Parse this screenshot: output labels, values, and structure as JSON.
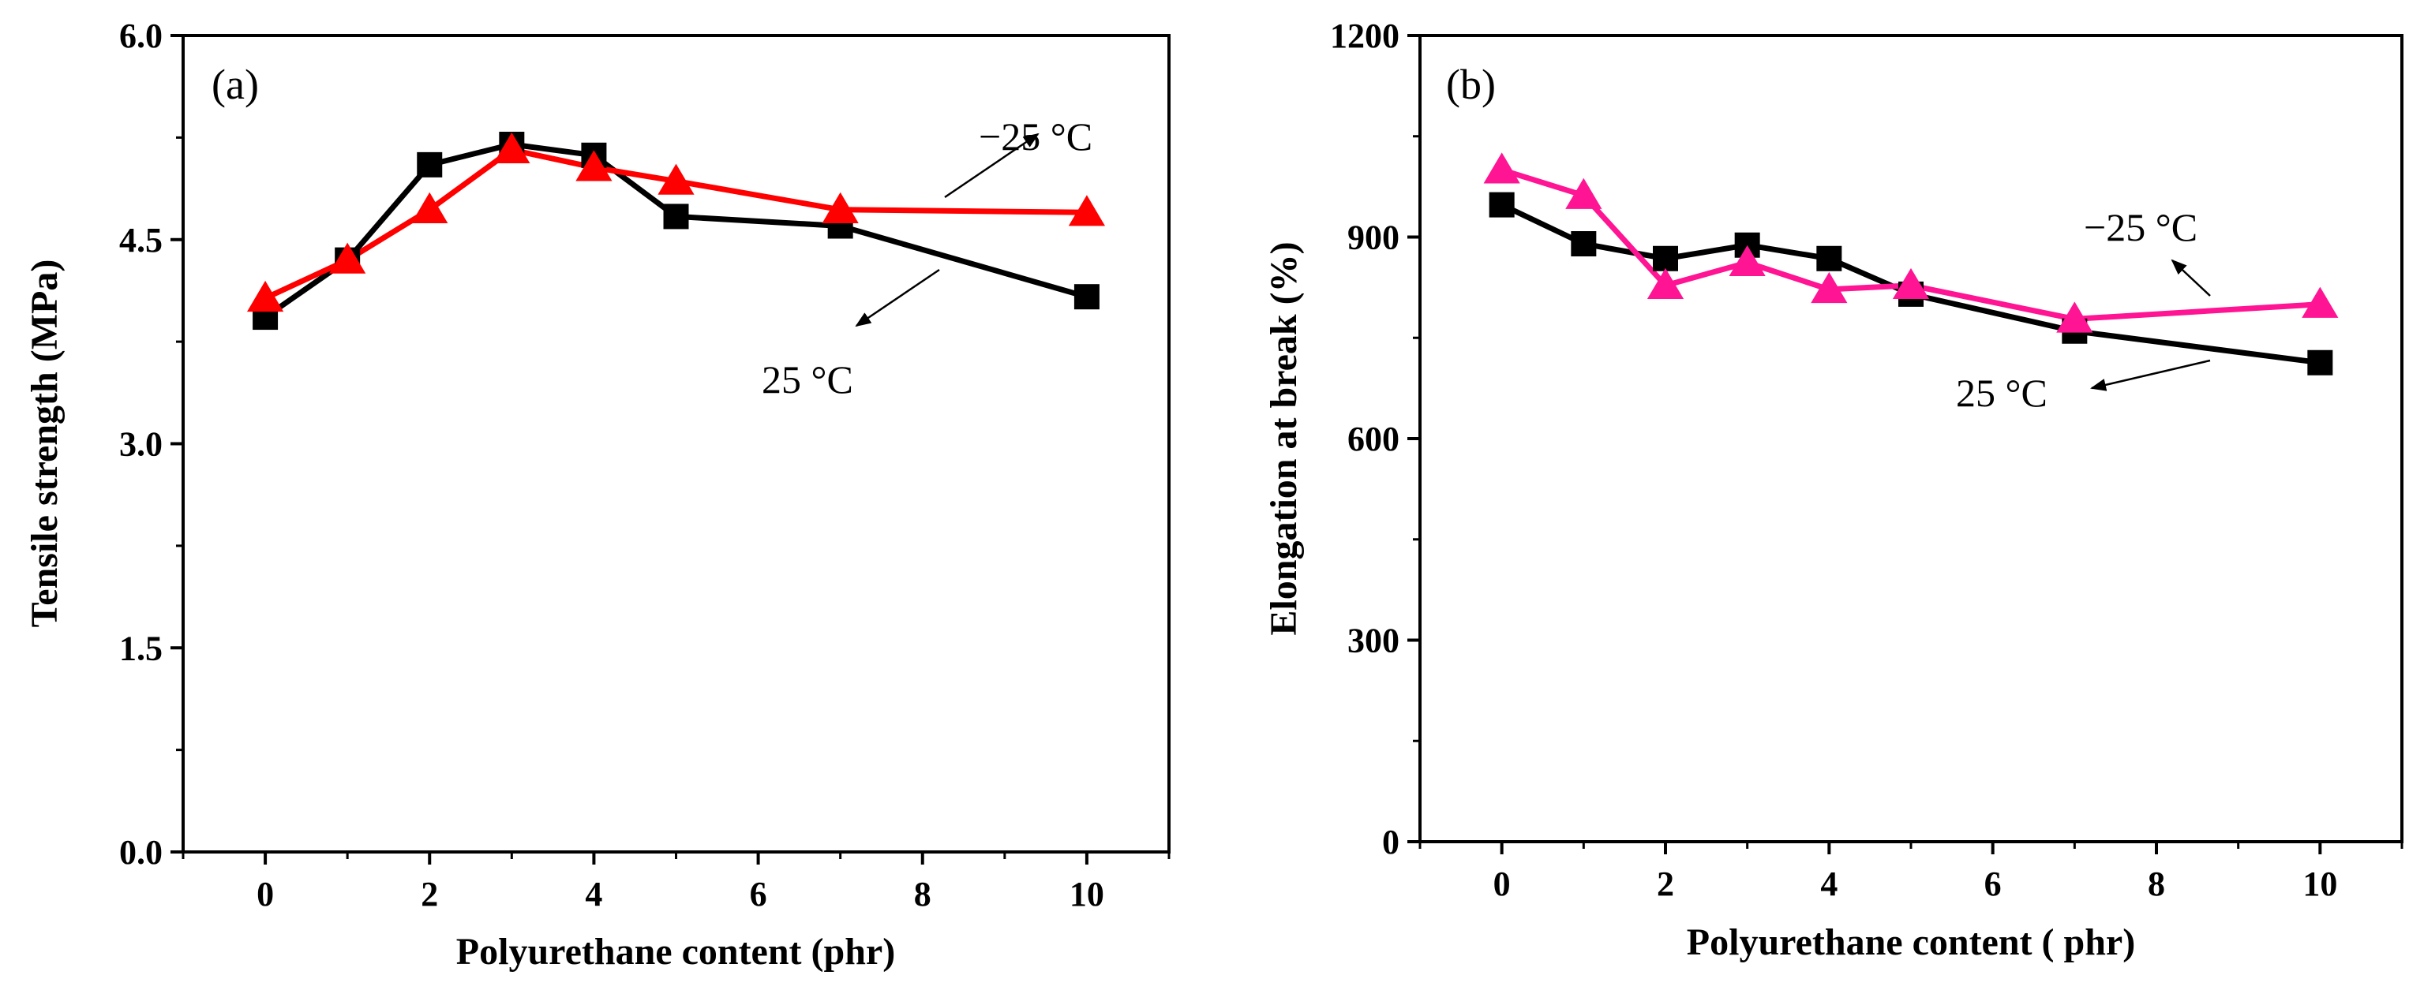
{
  "chart_data": [
    {
      "type": "line",
      "panel_label": "(a)",
      "xlabel": "Polyurethane content (phr)",
      "ylabel": "Tensile strength (MPa)",
      "xlim": [
        -1,
        11
      ],
      "ylim": [
        0,
        6
      ],
      "xticks": [
        0,
        2,
        4,
        6,
        8,
        10
      ],
      "xtick_labels": [
        "0",
        "2",
        "4",
        "6",
        "8",
        "10"
      ],
      "yticks": [
        0,
        1.5,
        3,
        4.5,
        6
      ],
      "ytick_labels": [
        "0.0",
        "1.5",
        "3.0",
        "4.5",
        "6.0"
      ],
      "x": [
        0,
        1,
        2,
        3,
        4,
        5,
        7,
        10
      ],
      "series": [
        {
          "name": "25 °C",
          "marker": "square",
          "color": "#000000",
          "values": [
            3.93,
            4.35,
            5.05,
            5.2,
            5.12,
            4.67,
            4.6,
            4.08
          ]
        },
        {
          "name": "−25 °C",
          "marker": "triangle",
          "color": "#ff0000",
          "values": [
            4.07,
            4.35,
            4.72,
            5.16,
            5.03,
            4.93,
            4.72,
            4.7
          ]
        }
      ],
      "annotations": [
        {
          "text": "−25 °C",
          "pos": [
            5.85,
            5.15
          ],
          "arrow_from": [
            5.35,
            5.15
          ],
          "arrow_to": [
            5.45,
            5.15
          ],
          "series": 1
        },
        {
          "text": "25 °C",
          "pos": [
            5.5,
            3.5
          ],
          "arrow_from": [
            4.65,
            3.78
          ],
          "arrow_to": [
            4.65,
            3.78
          ],
          "series": 0
        }
      ]
    },
    {
      "type": "line",
      "panel_label": "(b)",
      "xlabel": "Polyurethane content ( phr)",
      "ylabel": "Elongation at break (%)",
      "xlim": [
        -1,
        11
      ],
      "ylim": [
        0,
        1200
      ],
      "xticks": [
        0,
        2,
        4,
        6,
        8,
        10
      ],
      "xtick_labels": [
        "0",
        "2",
        "4",
        "6",
        "8",
        "10"
      ],
      "yticks": [
        0,
        300,
        600,
        900,
        1200
      ],
      "ytick_labels": [
        "0",
        "300",
        "600",
        "900",
        "1200"
      ],
      "x": [
        0,
        1,
        2,
        3,
        4,
        5,
        7,
        10
      ],
      "series": [
        {
          "name": "25 °C",
          "marker": "square",
          "color": "#000000",
          "values": [
            948,
            890,
            868,
            888,
            868,
            815,
            760,
            713
          ]
        },
        {
          "name": "−25 °C",
          "marker": "triangle",
          "color": "#ff1493",
          "values": [
            1000,
            962,
            828,
            862,
            822,
            828,
            778,
            800
          ]
        }
      ],
      "annotations": [
        {
          "text": "−25 °C",
          "pos": [
            8.25,
            910
          ],
          "series": 1
        },
        {
          "text": "25 °C",
          "pos": [
            6.0,
            665
          ],
          "series": 0
        }
      ]
    }
  ]
}
